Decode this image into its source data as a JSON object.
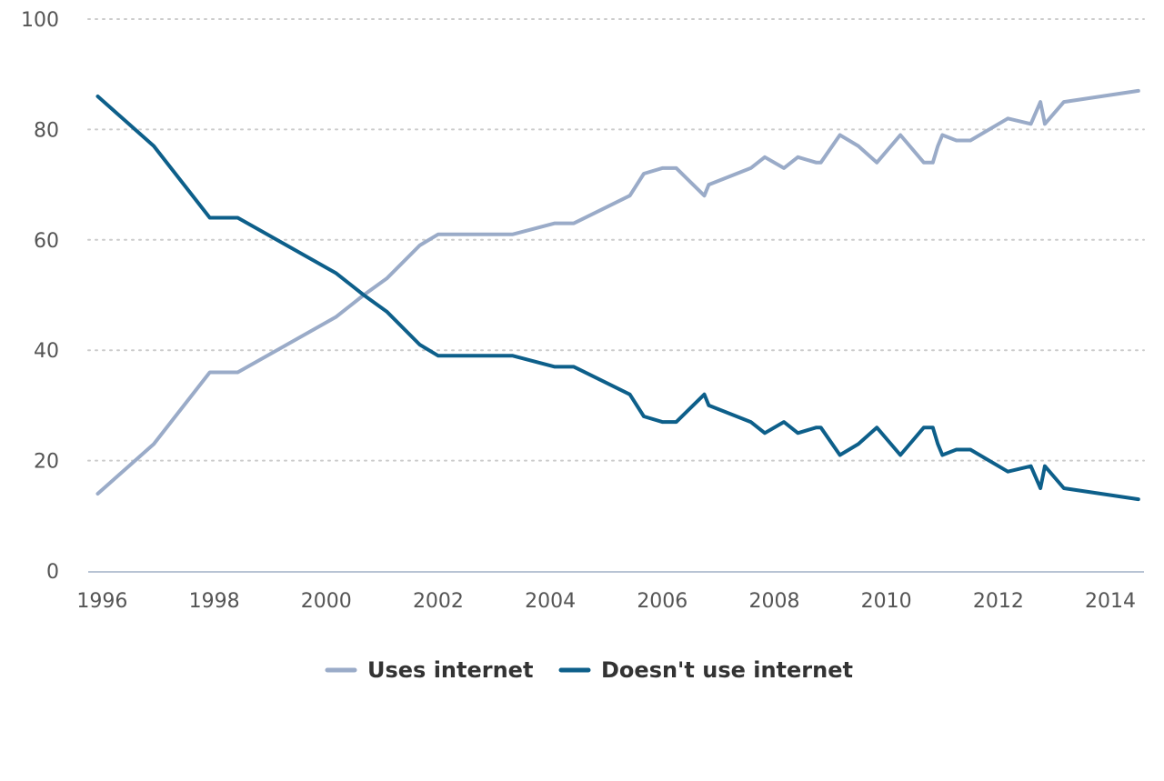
{
  "chart_data": {
    "type": "line",
    "title": "",
    "xlabel": "",
    "ylabel": "",
    "xlim": [
      1995.75,
      2014.6
    ],
    "ylim": [
      0,
      100
    ],
    "grid": "horizontal dotted",
    "legend": "bottom-center",
    "x_ticks": [
      "1996",
      "1998",
      "2000",
      "2002",
      "2004",
      "2006",
      "2008",
      "2010",
      "2012",
      "2014"
    ],
    "y_ticks": [
      "0",
      "20",
      "40",
      "60",
      "80",
      "100"
    ],
    "colors": {
      "uses": "#9aabc8",
      "doesnt": "#0d5f8a",
      "grid": "#cccccc",
      "axis": "#b8c4d4"
    },
    "series": [
      {
        "name": "Uses internet",
        "points": [
          [
            1995.92,
            14
          ],
          [
            1996.92,
            23
          ],
          [
            1997.92,
            36
          ],
          [
            1998.42,
            36
          ],
          [
            2000.17,
            46
          ],
          [
            2000.67,
            50
          ],
          [
            2001.08,
            53
          ],
          [
            2001.67,
            59
          ],
          [
            2002.0,
            61
          ],
          [
            2003.33,
            61
          ],
          [
            2004.08,
            63
          ],
          [
            2004.42,
            63
          ],
          [
            2005.42,
            68
          ],
          [
            2005.67,
            72
          ],
          [
            2006.0,
            73
          ],
          [
            2006.25,
            73
          ],
          [
            2006.75,
            68
          ],
          [
            2006.83,
            70
          ],
          [
            2007.58,
            73
          ],
          [
            2007.83,
            75
          ],
          [
            2008.17,
            73
          ],
          [
            2008.42,
            75
          ],
          [
            2008.75,
            74
          ],
          [
            2008.83,
            74
          ],
          [
            2009.17,
            79
          ],
          [
            2009.5,
            77
          ],
          [
            2009.83,
            74
          ],
          [
            2010.25,
            79
          ],
          [
            2010.67,
            74
          ],
          [
            2010.83,
            74
          ],
          [
            2010.92,
            77
          ],
          [
            2011.0,
            79
          ],
          [
            2011.25,
            78
          ],
          [
            2011.5,
            78
          ],
          [
            2012.17,
            82
          ],
          [
            2012.58,
            81
          ],
          [
            2012.75,
            85
          ],
          [
            2012.83,
            81
          ],
          [
            2013.17,
            85
          ],
          [
            2014.5,
            87
          ]
        ]
      },
      {
        "name": "Doesn't use internet",
        "points": [
          [
            1995.92,
            86
          ],
          [
            1996.92,
            77
          ],
          [
            1997.92,
            64
          ],
          [
            1998.42,
            64
          ],
          [
            2000.17,
            54
          ],
          [
            2000.67,
            50
          ],
          [
            2001.08,
            47
          ],
          [
            2001.67,
            41
          ],
          [
            2002.0,
            39
          ],
          [
            2003.33,
            39
          ],
          [
            2004.08,
            37
          ],
          [
            2004.42,
            37
          ],
          [
            2005.42,
            32
          ],
          [
            2005.67,
            28
          ],
          [
            2006.0,
            27
          ],
          [
            2006.25,
            27
          ],
          [
            2006.75,
            32
          ],
          [
            2006.83,
            30
          ],
          [
            2007.58,
            27
          ],
          [
            2007.83,
            25
          ],
          [
            2008.17,
            27
          ],
          [
            2008.42,
            25
          ],
          [
            2008.75,
            26
          ],
          [
            2008.83,
            26
          ],
          [
            2009.17,
            21
          ],
          [
            2009.5,
            23
          ],
          [
            2009.83,
            26
          ],
          [
            2010.25,
            21
          ],
          [
            2010.67,
            26
          ],
          [
            2010.83,
            26
          ],
          [
            2010.92,
            23
          ],
          [
            2011.0,
            21
          ],
          [
            2011.25,
            22
          ],
          [
            2011.5,
            22
          ],
          [
            2012.17,
            18
          ],
          [
            2012.58,
            19
          ],
          [
            2012.75,
            15
          ],
          [
            2012.83,
            19
          ],
          [
            2013.17,
            15
          ],
          [
            2014.5,
            13
          ]
        ]
      }
    ]
  }
}
